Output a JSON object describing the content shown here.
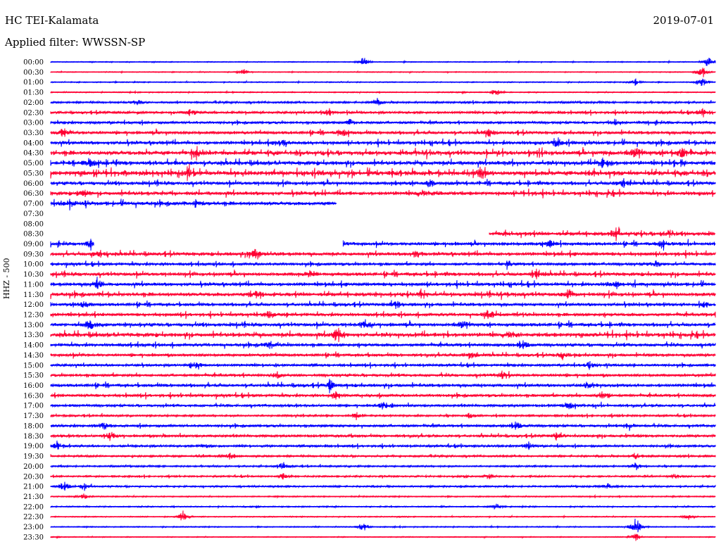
{
  "header": {
    "station": "HC TEI-Kalamata",
    "date": "2019-07-01",
    "filter_label": "Applied filter: WWSSN-SP"
  },
  "chart_data": {
    "type": "seismogram",
    "channel_label": "HHZ - 500",
    "colors": {
      "even_rows": "#0000ff",
      "odd_rows": "#ff0033"
    },
    "rows": [
      {
        "label": "00:00",
        "activity": 0.5,
        "coverage": [
          0,
          1
        ],
        "events": [
          [
            0.47,
            9
          ],
          [
            0.99,
            13
          ]
        ]
      },
      {
        "label": "00:30",
        "activity": 0.5,
        "coverage": [
          0,
          1
        ],
        "events": [
          [
            0.29,
            6
          ],
          [
            0.98,
            10
          ]
        ]
      },
      {
        "label": "01:00",
        "activity": 0.6,
        "coverage": [
          0,
          1
        ],
        "events": [
          [
            0.88,
            6
          ],
          [
            0.98,
            12
          ]
        ]
      },
      {
        "label": "01:30",
        "activity": 0.6,
        "coverage": [
          0,
          1
        ],
        "events": [
          [
            0.67,
            6
          ]
        ]
      },
      {
        "label": "02:00",
        "activity": 1.2,
        "coverage": [
          0,
          1
        ],
        "events": [
          [
            0.13,
            5
          ],
          [
            0.49,
            7
          ]
        ]
      },
      {
        "label": "02:30",
        "activity": 1.5,
        "coverage": [
          0,
          1
        ],
        "events": [
          [
            0.21,
            6
          ],
          [
            0.42,
            6
          ],
          [
            0.98,
            6
          ]
        ]
      },
      {
        "label": "03:00",
        "activity": 1.6,
        "coverage": [
          0,
          1
        ],
        "events": [
          [
            0.45,
            5
          ],
          [
            0.85,
            5
          ]
        ]
      },
      {
        "label": "03:30",
        "activity": 2.0,
        "coverage": [
          0,
          1
        ],
        "events": [
          [
            0.02,
            6
          ],
          [
            0.44,
            5
          ],
          [
            0.66,
            6
          ]
        ]
      },
      {
        "label": "04:00",
        "activity": 2.2,
        "coverage": [
          0,
          1
        ],
        "events": [
          [
            0.35,
            6
          ],
          [
            0.76,
            7
          ]
        ]
      },
      {
        "label": "04:30",
        "activity": 2.8,
        "coverage": [
          0,
          1
        ],
        "events": [
          [
            0.22,
            9
          ],
          [
            0.88,
            8
          ],
          [
            0.95,
            8
          ]
        ]
      },
      {
        "label": "05:00",
        "activity": 2.6,
        "coverage": [
          0,
          1
        ],
        "events": [
          [
            0.06,
            6
          ],
          [
            0.83,
            7
          ]
        ]
      },
      {
        "label": "05:30",
        "activity": 3.0,
        "coverage": [
          0,
          1
        ],
        "events": [
          [
            0.21,
            10
          ],
          [
            0.65,
            8
          ]
        ]
      },
      {
        "label": "06:00",
        "activity": 2.2,
        "coverage": [
          0,
          1
        ],
        "events": [
          [
            0.57,
            6
          ],
          [
            0.86,
            6
          ]
        ]
      },
      {
        "label": "06:30",
        "activity": 2.4,
        "coverage": [
          0,
          1
        ],
        "events": [
          [
            0.05,
            6
          ],
          [
            0.56,
            6
          ]
        ]
      },
      {
        "label": "07:00",
        "activity": 2.4,
        "coverage": [
          0,
          0.43
        ],
        "events": [
          [
            0.03,
            6
          ],
          [
            0.22,
            5
          ]
        ]
      },
      {
        "label": "07:30",
        "activity": 0,
        "coverage": [
          0,
          0
        ],
        "events": []
      },
      {
        "label": "08:00",
        "activity": 0,
        "coverage": [
          0,
          0
        ],
        "events": []
      },
      {
        "label": "08:30",
        "activity": 2.4,
        "coverage": [
          0.66,
          1
        ],
        "events": [
          [
            0.85,
            6
          ],
          [
            0.93,
            6
          ]
        ]
      },
      {
        "label": "09:00",
        "activity": 2.0,
        "coverage": [
          0,
          0.065
        ],
        "coverage2": [
          0.44,
          1
        ],
        "events": [
          [
            0.06,
            8
          ],
          [
            0.75,
            6
          ],
          [
            0.92,
            6
          ]
        ]
      },
      {
        "label": "09:30",
        "activity": 2.2,
        "coverage": [
          0,
          1
        ],
        "events": [
          [
            0.07,
            5
          ],
          [
            0.31,
            7
          ],
          [
            0.55,
            6
          ]
        ]
      },
      {
        "label": "10:00",
        "activity": 1.8,
        "coverage": [
          0,
          1
        ],
        "events": [
          [
            0.69,
            6
          ],
          [
            0.91,
            5
          ]
        ]
      },
      {
        "label": "10:30",
        "activity": 2.2,
        "coverage": [
          0,
          1
        ],
        "events": [
          [
            0.39,
            6
          ],
          [
            0.73,
            6
          ]
        ]
      },
      {
        "label": "11:00",
        "activity": 2.2,
        "coverage": [
          0,
          1
        ],
        "events": [
          [
            0.07,
            9
          ],
          [
            0.85,
            6
          ]
        ]
      },
      {
        "label": "11:30",
        "activity": 2.4,
        "coverage": [
          0,
          1
        ],
        "events": [
          [
            0.31,
            6
          ],
          [
            0.56,
            6
          ],
          [
            0.78,
            6
          ]
        ]
      },
      {
        "label": "12:00",
        "activity": 2.0,
        "coverage": [
          0,
          1
        ],
        "events": [
          [
            0.05,
            6
          ],
          [
            0.52,
            6
          ],
          [
            0.98,
            6
          ]
        ]
      },
      {
        "label": "12:30",
        "activity": 2.0,
        "coverage": [
          0,
          1
        ],
        "events": [
          [
            0.33,
            6
          ],
          [
            0.66,
            6
          ]
        ]
      },
      {
        "label": "13:00",
        "activity": 2.2,
        "coverage": [
          0,
          1
        ],
        "events": [
          [
            0.06,
            8
          ],
          [
            0.47,
            6
          ],
          [
            0.62,
            6
          ]
        ]
      },
      {
        "label": "13:30",
        "activity": 2.6,
        "coverage": [
          0,
          1
        ],
        "events": [
          [
            0.43,
            10
          ],
          [
            0.69,
            6
          ]
        ]
      },
      {
        "label": "14:00",
        "activity": 2.0,
        "coverage": [
          0,
          1
        ],
        "events": [
          [
            0.33,
            6
          ],
          [
            0.71,
            6
          ]
        ]
      },
      {
        "label": "14:30",
        "activity": 1.8,
        "coverage": [
          0,
          1
        ],
        "events": [
          [
            0.63,
            6
          ],
          [
            0.77,
            6
          ]
        ]
      },
      {
        "label": "15:00",
        "activity": 1.6,
        "coverage": [
          0,
          1
        ],
        "events": [
          [
            0.22,
            6
          ],
          [
            0.81,
            6
          ]
        ]
      },
      {
        "label": "15:30",
        "activity": 1.8,
        "coverage": [
          0,
          1
        ],
        "events": [
          [
            0.34,
            5
          ],
          [
            0.68,
            6
          ]
        ]
      },
      {
        "label": "16:00",
        "activity": 2.0,
        "coverage": [
          0,
          1
        ],
        "events": [
          [
            0.42,
            10
          ],
          [
            0.81,
            6
          ]
        ]
      },
      {
        "label": "16:30",
        "activity": 1.8,
        "coverage": [
          0,
          1
        ],
        "events": [
          [
            0.43,
            8
          ],
          [
            0.83,
            5
          ]
        ]
      },
      {
        "label": "17:00",
        "activity": 1.6,
        "coverage": [
          0,
          1
        ],
        "events": [
          [
            0.5,
            7
          ],
          [
            0.78,
            6
          ]
        ]
      },
      {
        "label": "17:30",
        "activity": 1.2,
        "coverage": [
          0,
          1
        ],
        "events": [
          [
            0.46,
            6
          ],
          [
            0.63,
            5
          ]
        ]
      },
      {
        "label": "18:00",
        "activity": 1.6,
        "coverage": [
          0,
          1
        ],
        "events": [
          [
            0.08,
            6
          ],
          [
            0.7,
            6
          ],
          [
            0.87,
            6
          ]
        ]
      },
      {
        "label": "18:30",
        "activity": 1.6,
        "coverage": [
          0,
          1
        ],
        "events": [
          [
            0.09,
            6
          ],
          [
            0.76,
            6
          ]
        ]
      },
      {
        "label": "19:00",
        "activity": 1.4,
        "coverage": [
          0,
          1
        ],
        "events": [
          [
            0.01,
            6
          ],
          [
            0.23,
            5
          ],
          [
            0.72,
            5
          ]
        ]
      },
      {
        "label": "19:30",
        "activity": 1.2,
        "coverage": [
          0,
          1
        ],
        "events": [
          [
            0.27,
            6
          ],
          [
            0.88,
            6
          ]
        ]
      },
      {
        "label": "20:00",
        "activity": 1.0,
        "coverage": [
          0,
          1
        ],
        "events": [
          [
            0.35,
            7
          ],
          [
            0.88,
            7
          ]
        ]
      },
      {
        "label": "20:30",
        "activity": 1.0,
        "coverage": [
          0,
          1
        ],
        "events": [
          [
            0.35,
            6
          ],
          [
            0.66,
            6
          ],
          [
            0.94,
            5
          ]
        ]
      },
      {
        "label": "21:00",
        "activity": 1.0,
        "coverage": [
          0,
          1
        ],
        "events": [
          [
            0.02,
            8
          ],
          [
            0.05,
            6
          ],
          [
            0.84,
            6
          ]
        ]
      },
      {
        "label": "21:30",
        "activity": 0.7,
        "coverage": [
          0,
          1
        ],
        "events": [
          [
            0.05,
            5
          ]
        ]
      },
      {
        "label": "22:00",
        "activity": 0.7,
        "coverage": [
          0,
          1
        ],
        "events": [
          [
            0.67,
            6
          ]
        ]
      },
      {
        "label": "22:30",
        "activity": 0.6,
        "coverage": [
          0,
          1
        ],
        "events": [
          [
            0.2,
            9
          ],
          [
            0.96,
            5
          ]
        ]
      },
      {
        "label": "23:00",
        "activity": 0.6,
        "coverage": [
          0,
          1
        ],
        "events": [
          [
            0.47,
            9
          ],
          [
            0.88,
            16
          ]
        ]
      },
      {
        "label": "23:30",
        "activity": 0.5,
        "coverage": [
          0,
          1
        ],
        "events": [
          [
            0.88,
            8
          ]
        ]
      }
    ]
  }
}
